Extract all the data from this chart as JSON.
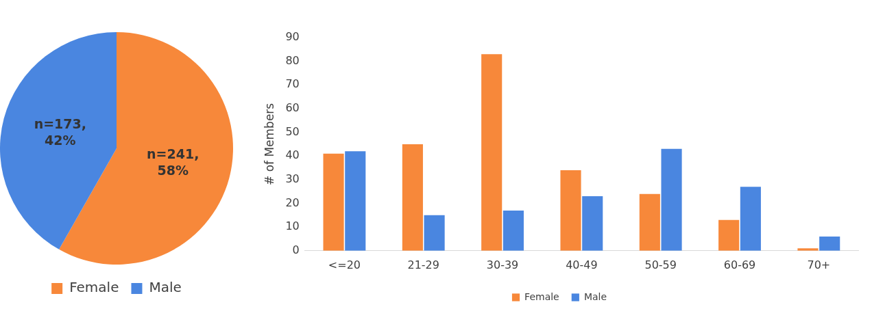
{
  "chart_data": [
    {
      "type": "pie",
      "categories": [
        "Female",
        "Male"
      ],
      "values": [
        241,
        173
      ],
      "colors": [
        "#f7883a",
        "#4a86e0"
      ],
      "value_labels": [
        "n=241, 58%",
        "n=173, 42%"
      ],
      "legend": "bottom"
    },
    {
      "type": "bar",
      "ylabel": "# of Members",
      "categories": [
        "<=20",
        "21-29",
        "30-39",
        "40-49",
        "50-59",
        "60-69",
        "70+"
      ],
      "series": [
        {
          "name": "Female",
          "color": "#f7883a",
          "values": [
            41,
            45,
            83,
            34,
            24,
            13,
            1
          ]
        },
        {
          "name": "Male",
          "color": "#4a86e0",
          "values": [
            42,
            15,
            17,
            23,
            43,
            27,
            6
          ]
        }
      ],
      "ylim": [
        0,
        90
      ],
      "yticks": [
        0,
        10,
        20,
        30,
        40,
        50,
        60,
        70,
        80,
        90
      ],
      "grid": false,
      "legend": "bottom"
    }
  ]
}
